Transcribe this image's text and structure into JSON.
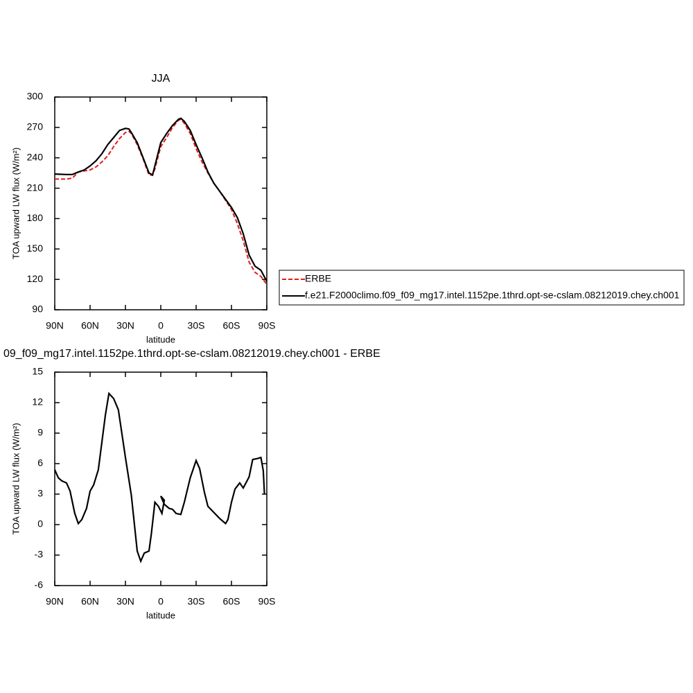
{
  "chart_data": [
    {
      "type": "line",
      "title": "JJA",
      "ylabel": "TOA upward LW flux (W/m²)",
      "xlabel": "latitude",
      "x": [
        90,
        80,
        75,
        70,
        65,
        60,
        55,
        50,
        45,
        40,
        35,
        30,
        27,
        25,
        20,
        15,
        10,
        7,
        5,
        0,
        -5,
        -10,
        -15,
        -17,
        -20,
        -25,
        -30,
        -35,
        -40,
        -45,
        -50,
        -55,
        -60,
        -65,
        -70,
        -75,
        -80,
        -85,
        -90
      ],
      "series": [
        {
          "name": "ERBE",
          "color": "#e41a1c",
          "dash": true,
          "values": [
            219,
            219,
            220,
            226,
            227,
            228,
            231,
            236,
            242,
            251,
            259,
            265,
            266,
            264,
            253,
            239,
            223,
            223,
            229,
            251,
            260,
            270,
            277,
            278,
            274,
            264,
            249,
            236,
            225,
            215,
            207,
            198,
            189,
            175,
            158,
            137,
            127,
            123,
            115
          ]
        },
        {
          "name": "f.e21.F2000climo.f09_f09_mg17.intel.1152pe.1thrd.opt-se-cslam.08212019.chey.ch001",
          "color": "#000000",
          "dash": false,
          "values": [
            224,
            223.5,
            223.5,
            226,
            228,
            232,
            237,
            244,
            253,
            260,
            267,
            269,
            268.5,
            265,
            255,
            240,
            225,
            223,
            232,
            255,
            264,
            272,
            278,
            279,
            276,
            267,
            253,
            240,
            226,
            215,
            207,
            199,
            191,
            181,
            165,
            144,
            133,
            129,
            118
          ]
        }
      ],
      "xlim": [
        90,
        -90
      ],
      "xticks": [
        {
          "value": 90,
          "label": "90N"
        },
        {
          "value": 60,
          "label": "60N"
        },
        {
          "value": 30,
          "label": "30N"
        },
        0,
        {
          "value": -30,
          "label": "30S"
        },
        {
          "value": -60,
          "label": "60S"
        },
        {
          "value": -90,
          "label": "90S"
        }
      ],
      "ylim": [
        90,
        300
      ],
      "yticks": [
        90,
        120,
        150,
        180,
        210,
        240,
        270,
        300
      ],
      "legend": "right"
    },
    {
      "type": "line",
      "title": "09_f09_mg17.intel.1152pe.1thrd.opt-se-cslam.08212019.chey.ch001 - ERBE",
      "ylabel": "TOA upward LW flux (W/m²)",
      "xlabel": "latitude",
      "x": [
        90,
        87,
        84,
        80,
        77,
        73,
        70,
        67,
        63,
        60,
        57,
        53,
        50,
        47,
        44,
        40,
        36,
        30,
        25,
        20,
        17,
        14,
        10,
        8,
        5,
        2,
        -1,
        -3,
        0,
        -3,
        -7,
        -10,
        -13,
        -17,
        -20,
        -25,
        -30,
        -33,
        -37,
        -40,
        -45,
        -50,
        -55,
        -57,
        -60,
        -63,
        -67,
        -70,
        -75,
        -78,
        -82,
        -85,
        -87,
        -88
      ],
      "color": "#000000",
      "values": [
        5.4,
        4.6,
        4.3,
        4.1,
        3.3,
        1.1,
        0.1,
        0.5,
        1.6,
        3.3,
        3.9,
        5.4,
        8.1,
        10.8,
        12.9,
        12.4,
        11.3,
        6.6,
        2.9,
        -2.6,
        -3.6,
        -2.8,
        -2.6,
        -0.9,
        2.2,
        1.8,
        1.1,
        2.4,
        2.8,
        2,
        1.6,
        1.5,
        1.1,
        1,
        2.2,
        4.6,
        6.3,
        5.5,
        3.2,
        1.8,
        1.2,
        0.6,
        0.1,
        0.5,
        2.2,
        3.5,
        4.1,
        3.6,
        4.7,
        6.4,
        6.5,
        6.6,
        5.3,
        3
      ],
      "xlim": [
        90,
        -90
      ],
      "xticks": [
        {
          "value": 90,
          "label": "90N"
        },
        {
          "value": 60,
          "label": "60N"
        },
        {
          "value": 30,
          "label": "30N"
        },
        0,
        {
          "value": -30,
          "label": "30S"
        },
        {
          "value": -60,
          "label": "60S"
        },
        {
          "value": -90,
          "label": "90S"
        }
      ],
      "ylim": [
        -6,
        15
      ],
      "yticks": [
        -6,
        -3,
        0,
        3,
        6,
        9,
        12,
        15
      ]
    }
  ]
}
